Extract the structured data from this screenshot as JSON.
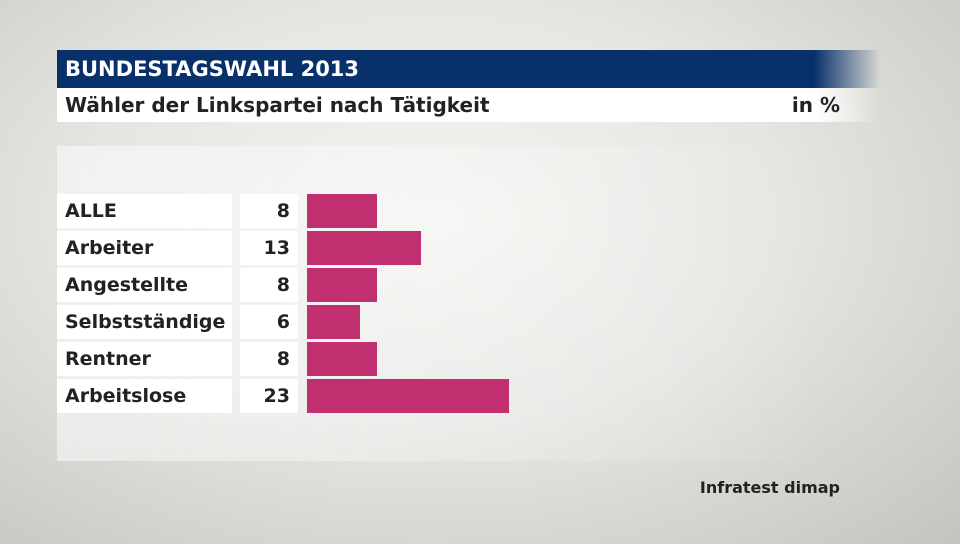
{
  "header": {
    "title": "BUNDESTAGSWAHL 2013",
    "subtitle": "Wähler der Linkspartei nach Tätigkeit",
    "unit": "in %"
  },
  "source": "Infratest dimap",
  "chart_data": {
    "type": "bar",
    "orientation": "horizontal",
    "categories": [
      "ALLE",
      "Arbeiter",
      "Angestellte",
      "Selbstständige",
      "Rentner",
      "Arbeitslose"
    ],
    "values": [
      8,
      13,
      8,
      6,
      8,
      23
    ],
    "value_labels": [
      "8",
      "13",
      "8",
      "6",
      "8",
      "23"
    ],
    "color": "#c03070",
    "unit": "in %"
  }
}
